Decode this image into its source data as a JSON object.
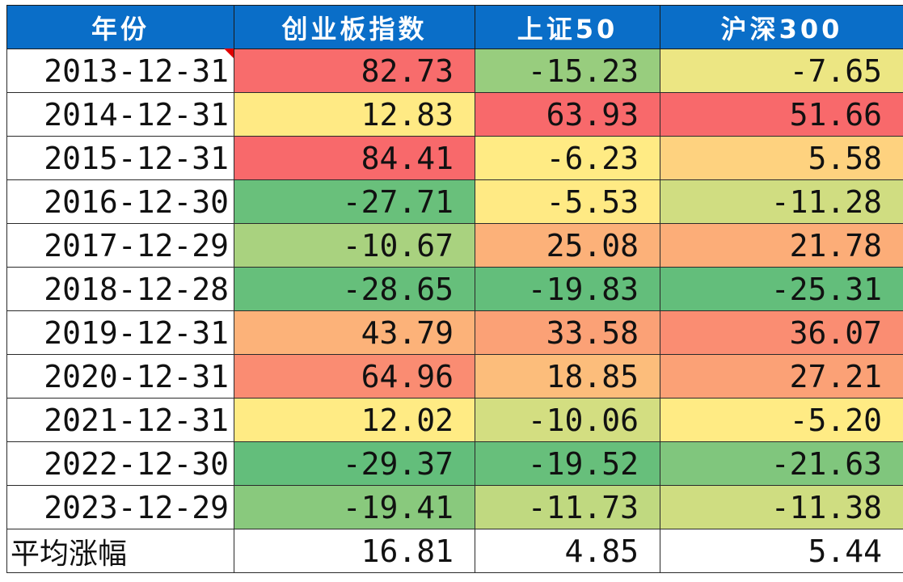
{
  "chart_data": {
    "type": "table",
    "columns": [
      "年份",
      "创业板指数",
      "上证50",
      "沪深300"
    ],
    "rows": [
      {
        "date": "2013-12-31",
        "values": [
          "82.73",
          "-15.23",
          "-7.65"
        ]
      },
      {
        "date": "2014-12-31",
        "values": [
          "12.83",
          "63.93",
          "51.66"
        ]
      },
      {
        "date": "2015-12-31",
        "values": [
          "84.41",
          "-6.23",
          "5.58"
        ]
      },
      {
        "date": "2016-12-30",
        "values": [
          "-27.71",
          "-5.53",
          "-11.28"
        ]
      },
      {
        "date": "2017-12-29",
        "values": [
          "-10.67",
          "25.08",
          "21.78"
        ]
      },
      {
        "date": "2018-12-28",
        "values": [
          "-28.65",
          "-19.83",
          "-25.31"
        ]
      },
      {
        "date": "2019-12-31",
        "values": [
          "43.79",
          "33.58",
          "36.07"
        ]
      },
      {
        "date": "2020-12-31",
        "values": [
          "64.96",
          "18.85",
          "27.21"
        ]
      },
      {
        "date": "2021-12-31",
        "values": [
          "12.02",
          "-10.06",
          "-5.20"
        ]
      },
      {
        "date": "2022-12-30",
        "values": [
          "-29.37",
          "-19.52",
          "-21.63"
        ]
      },
      {
        "date": "2023-12-29",
        "values": [
          "-19.41",
          "-11.73",
          "-11.38"
        ]
      }
    ],
    "average": {
      "label": "平均涨幅",
      "values": [
        "16.81",
        "4.85",
        "5.44"
      ]
    },
    "color_scale": {
      "low": "#63be7b",
      "mid": "#ffeb84",
      "high": "#f8696b"
    },
    "header_color": "#0a6ec8"
  }
}
